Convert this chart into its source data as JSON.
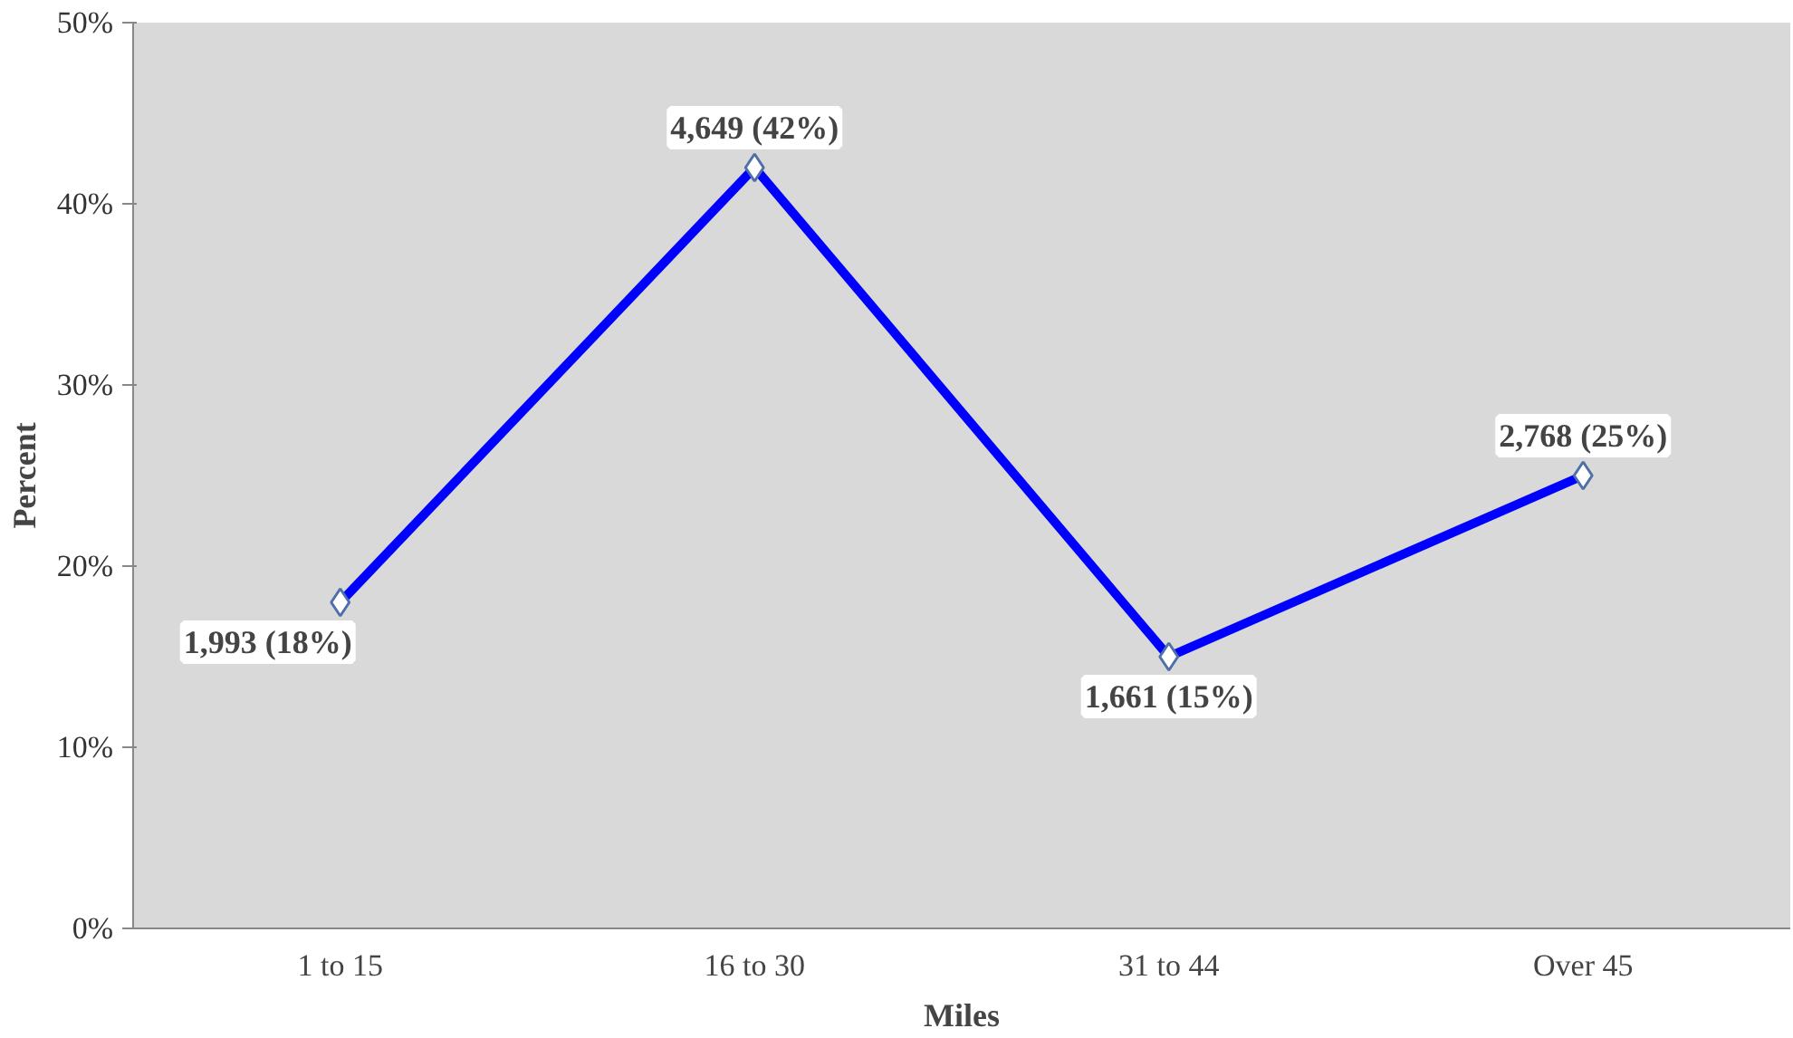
{
  "chart_data": {
    "type": "line",
    "xlabel": "Miles",
    "ylabel": "Percent",
    "categories": [
      "1 to 15",
      "16 to 30",
      "31 to 44",
      "Over 45"
    ],
    "series": [
      {
        "color": "#0000ff",
        "values": [
          18,
          42,
          15,
          25
        ],
        "value_labels": [
          "1,993 (18%)",
          "4,649 (42%)",
          "1,661 (15%)",
          "2,768 (25%)"
        ]
      }
    ],
    "ylim": [
      0,
      50
    ],
    "yticks": [
      {
        "value": 0,
        "label": "0%"
      },
      {
        "value": 10,
        "label": "10%"
      },
      {
        "value": 20,
        "label": "20%"
      },
      {
        "value": 30,
        "label": "30%"
      },
      {
        "value": 40,
        "label": "40%"
      },
      {
        "value": 50,
        "label": "50%"
      }
    ],
    "grid": false,
    "marker": "diamond",
    "line_style": "solid"
  }
}
